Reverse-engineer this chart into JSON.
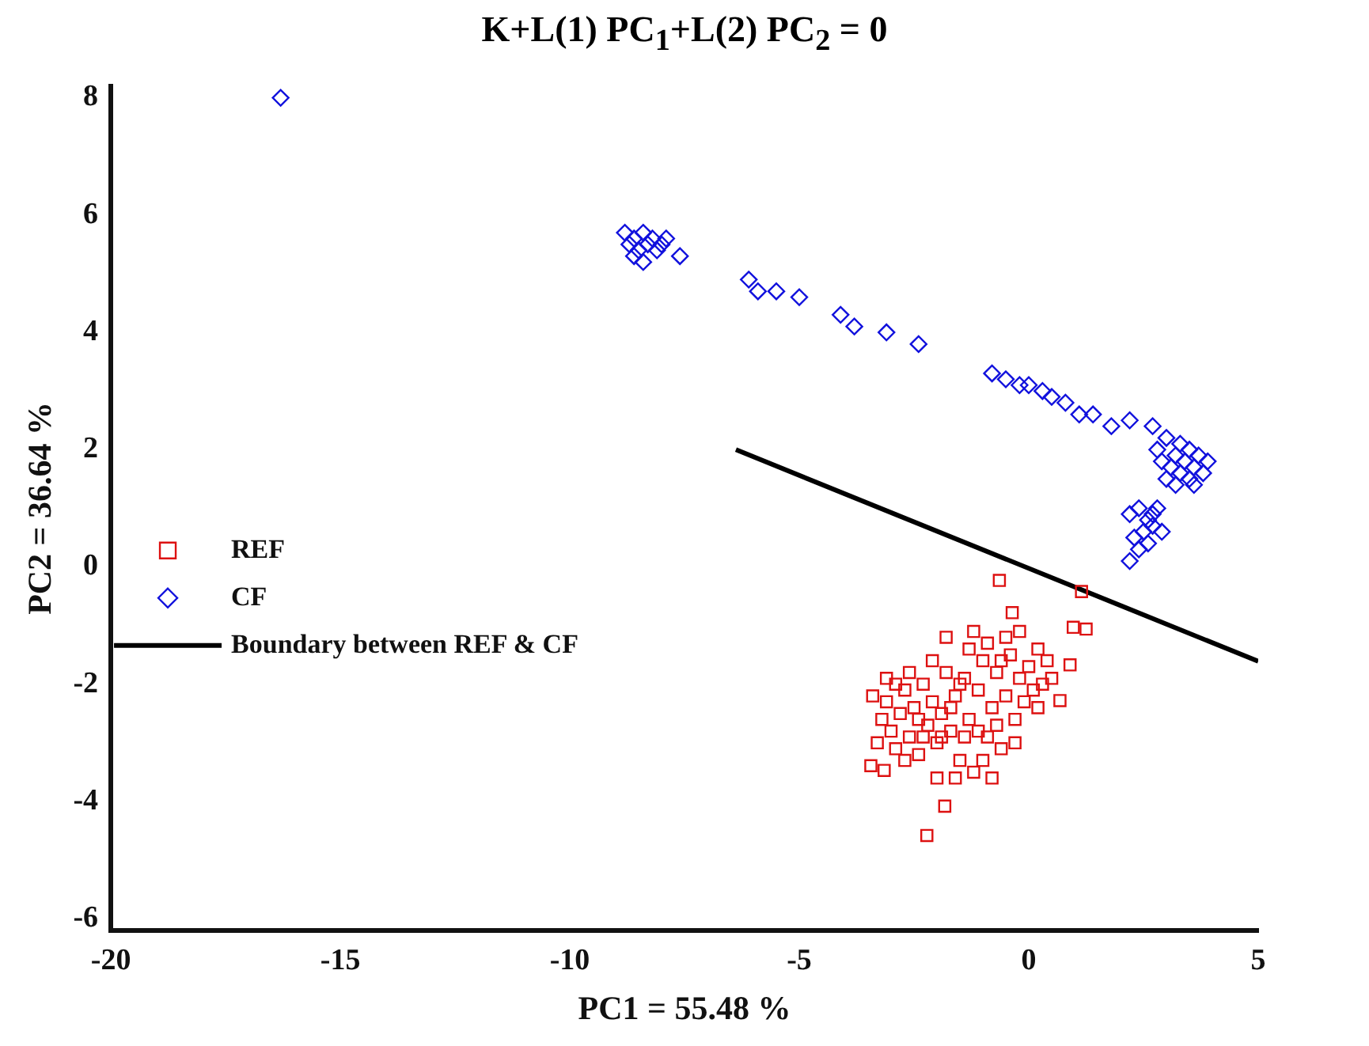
{
  "chart_data": {
    "type": "scatter",
    "title": "K+L(1) PC$_{1}$+L(2) PC$_{2}$ = 0",
    "xlabel": "PC1 = 55.48 %",
    "ylabel": "PC2 = 36.64 %",
    "xlim": [
      -20,
      5
    ],
    "xticks": [
      -20,
      -15,
      -10,
      -5,
      0,
      5
    ],
    "ylim": [
      -6.2,
      8.2
    ],
    "yticks": [
      -6,
      -4,
      -2,
      0,
      2,
      4,
      6,
      8
    ],
    "grid": false,
    "legend": "left",
    "series": [
      {
        "name": "REF",
        "color": "#dd1111",
        "marker": "square",
        "x": [
          -0.64,
          -0.36,
          1.15,
          0.97,
          1.25,
          0.9,
          0.68,
          -1.83,
          -2.22,
          -3.44,
          -3.15,
          -3.3,
          -3.2,
          -3.1,
          -3.0,
          -2.9,
          -2.8,
          -2.7,
          -2.6,
          -2.5,
          -2.4,
          -2.3,
          -2.2,
          -2.1,
          -2.0,
          -1.9,
          -1.8,
          -1.7,
          -1.6,
          -1.5,
          -1.4,
          -1.3,
          -1.2,
          -1.1,
          -1.0,
          -0.9,
          -0.8,
          -0.7,
          -0.6,
          -0.5,
          -0.4,
          -0.3,
          -0.2,
          -0.1,
          0.0,
          0.1,
          0.2,
          0.3,
          0.4,
          0.5,
          -3.4,
          -2.9,
          -2.6,
          -2.4,
          -2.1,
          -1.9,
          -1.7,
          -1.5,
          -1.3,
          -1.1,
          -0.9,
          -0.7,
          -0.5,
          -0.3,
          -1.6,
          -1.0,
          -2.0,
          -0.8,
          -2.3,
          -1.4,
          -0.6,
          0.2,
          -1.2,
          -2.7,
          -3.1,
          -1.8,
          -0.2
        ],
        "values": [
          -0.23,
          -0.78,
          -0.42,
          -1.03,
          -1.06,
          -1.67,
          -2.28,
          -4.08,
          -4.58,
          -3.39,
          -3.47,
          -3.0,
          -2.6,
          -2.3,
          -2.8,
          -3.1,
          -2.5,
          -2.1,
          -2.9,
          -2.4,
          -3.2,
          -2.0,
          -2.7,
          -2.3,
          -3.0,
          -2.5,
          -1.8,
          -2.8,
          -2.2,
          -3.3,
          -1.9,
          -2.6,
          -3.5,
          -2.1,
          -1.6,
          -2.9,
          -2.4,
          -1.8,
          -3.1,
          -2.2,
          -1.5,
          -2.6,
          -1.9,
          -2.3,
          -1.7,
          -2.1,
          -1.4,
          -2.0,
          -1.6,
          -1.9,
          -2.2,
          -2.0,
          -1.8,
          -2.6,
          -1.6,
          -2.9,
          -2.4,
          -2.0,
          -1.4,
          -2.8,
          -1.3,
          -2.7,
          -1.2,
          -3.0,
          -3.6,
          -3.3,
          -3.6,
          -3.6,
          -2.9,
          -2.9,
          -1.6,
          -2.4,
          -1.1,
          -3.3,
          -1.9,
          -1.2,
          -1.1
        ]
      },
      {
        "name": "CF",
        "color": "#1111dd",
        "marker": "diamond",
        "x": [
          -16.3,
          -8.8,
          -8.7,
          -8.6,
          -8.5,
          -8.4,
          -8.3,
          -8.2,
          -8.1,
          -8.0,
          -8.6,
          -7.9,
          -8.4,
          -7.6,
          -6.1,
          -5.9,
          -5.5,
          -5.0,
          -4.1,
          -3.8,
          -3.1,
          -2.4,
          -0.8,
          -0.5,
          -0.2,
          0,
          0.3,
          0.5,
          0.8,
          1.1,
          1.4,
          1.8,
          2.2,
          2.7,
          2.8,
          3.0,
          3.1,
          3.2,
          3.3,
          3.3,
          3.4,
          3.5,
          3.5,
          3.6,
          3.7,
          3.8,
          3.9,
          3.0,
          3.2,
          3.6,
          2.9,
          2.2,
          2.4,
          2.6,
          2.5,
          2.7,
          2.8,
          2.9,
          2.3,
          2.6,
          2.4,
          2.2,
          2.7
        ],
        "values": [
          8.0,
          5.7,
          5.5,
          5.6,
          5.4,
          5.7,
          5.5,
          5.6,
          5.4,
          5.5,
          5.3,
          5.6,
          5.2,
          5.3,
          4.9,
          4.7,
          4.7,
          4.6,
          4.3,
          4.1,
          4.0,
          3.8,
          3.3,
          3.2,
          3.1,
          3.1,
          3.0,
          2.9,
          2.8,
          2.6,
          2.6,
          2.4,
          2.5,
          2.4,
          2.0,
          2.2,
          1.7,
          1.9,
          1.6,
          2.1,
          1.8,
          1.5,
          2.0,
          1.7,
          1.9,
          1.6,
          1.8,
          1.5,
          1.4,
          1.4,
          1.8,
          0.9,
          1.0,
          0.8,
          0.6,
          0.7,
          1.0,
          0.6,
          0.5,
          0.4,
          0.3,
          0.1,
          0.9
        ]
      },
      {
        "name": "Boundary between REF & CF",
        "type": "line",
        "color": "#000000",
        "marker": "none",
        "x": [
          -6.38,
          5
        ],
        "values": [
          2.0,
          -1.61
        ]
      }
    ]
  }
}
